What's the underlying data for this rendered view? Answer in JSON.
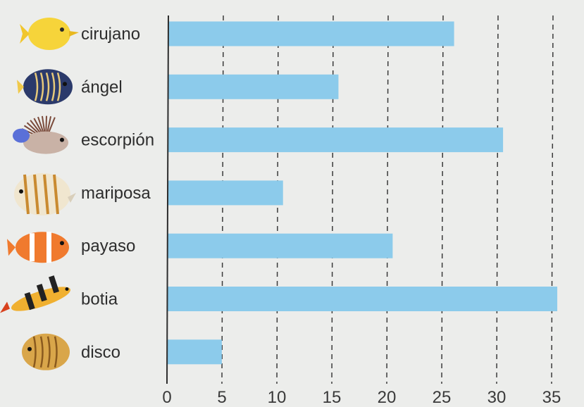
{
  "chart_data": {
    "type": "bar",
    "orientation": "horizontal",
    "categories": [
      "cirujano",
      "ángel",
      "escorpión",
      "mariposa",
      "payaso",
      "botia",
      "disco"
    ],
    "values": [
      26,
      15.5,
      30.5,
      10.5,
      20.5,
      35.5,
      5
    ],
    "icons": [
      "yellow-tang-fish-icon",
      "emperor-angelfish-icon",
      "lionfish-icon",
      "butterflyfish-icon",
      "clownfish-icon",
      "clown-loach-icon",
      "discus-fish-icon"
    ],
    "xticks": [
      0,
      5,
      10,
      15,
      20,
      25,
      30,
      35
    ],
    "xlim": [
      0,
      37
    ],
    "grid": true,
    "bar_color": "#8ccbeb",
    "title": "",
    "xlabel": "",
    "ylabel": ""
  }
}
